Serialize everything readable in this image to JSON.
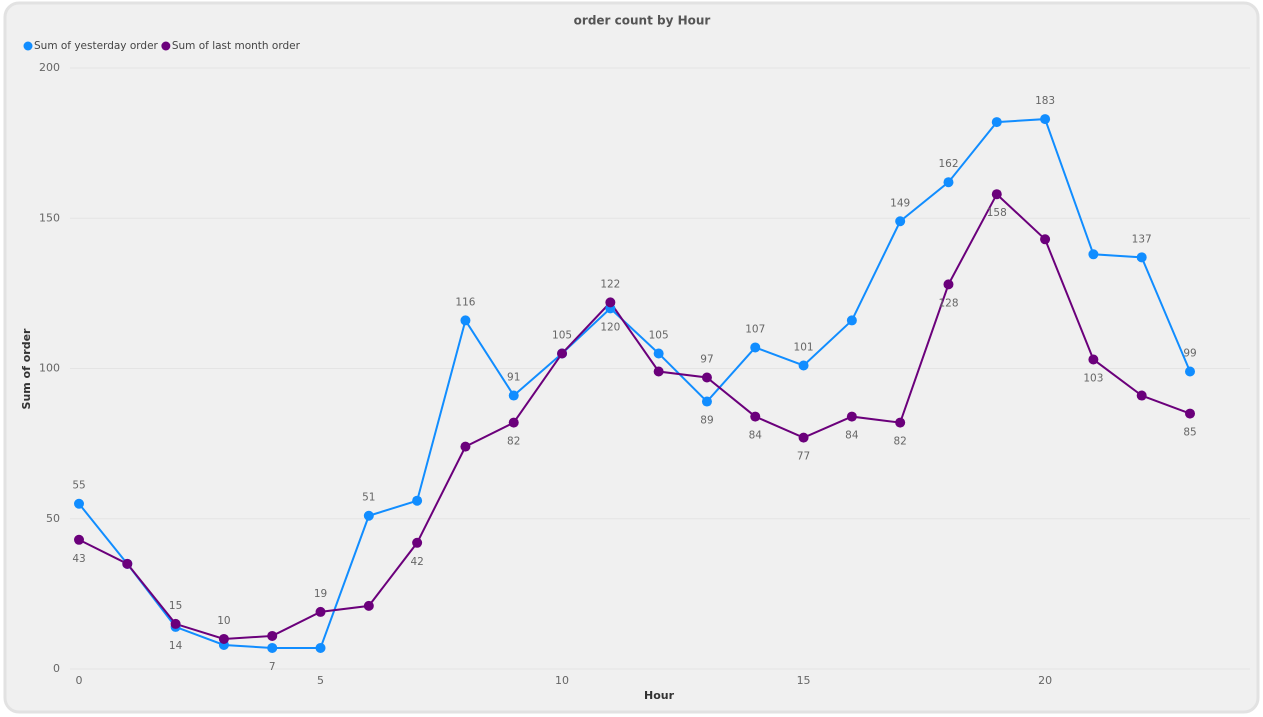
{
  "chart_data": {
    "type": "line",
    "title": "order count  by Hour",
    "x_label": "Hour",
    "y_label": "Sum of order",
    "x": [
      0,
      1,
      2,
      3,
      4,
      5,
      6,
      7,
      8,
      9,
      10,
      11,
      12,
      13,
      14,
      15,
      16,
      17,
      18,
      19,
      20,
      21,
      22,
      23
    ],
    "xlim": [
      0,
      23
    ],
    "xticks": [
      0,
      5,
      10,
      15,
      20
    ],
    "ylim": [
      0,
      200
    ],
    "yticks": [
      0,
      50,
      100,
      150,
      200
    ],
    "grid": true,
    "legend": "top-left",
    "series": [
      {
        "name": "Sum of yesterday order",
        "color": "#118dff",
        "values": [
          55,
          35,
          14,
          8,
          7,
          7,
          51,
          56,
          116,
          91,
          105,
          120,
          105,
          89,
          107,
          101,
          116,
          149,
          162,
          182,
          183,
          138,
          137,
          99
        ],
        "value_labels": [
          55,
          null,
          14,
          null,
          7,
          null,
          51,
          null,
          116,
          91,
          105,
          120,
          105,
          89,
          107,
          101,
          null,
          149,
          162,
          null,
          183,
          null,
          137,
          99
        ]
      },
      {
        "name": "Sum of last month order",
        "color": "#6b007b",
        "values": [
          43,
          35,
          15,
          10,
          11,
          19,
          21,
          42,
          74,
          82,
          105,
          122,
          99,
          97,
          84,
          77,
          84,
          82,
          128,
          158,
          143,
          103,
          91,
          85
        ],
        "value_labels": [
          43,
          null,
          15,
          10,
          null,
          19,
          null,
          42,
          null,
          82,
          null,
          122,
          null,
          97,
          84,
          77,
          84,
          82,
          128,
          158,
          null,
          103,
          null,
          85
        ]
      }
    ]
  }
}
